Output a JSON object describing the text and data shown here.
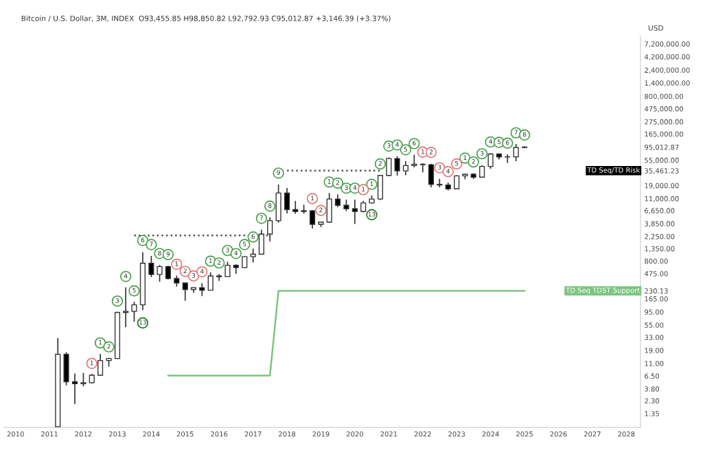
{
  "chart_data": {
    "type": "candlestick",
    "title": "Bitcoin / U.S. Dollar, 3M, INDEX  O93,455.85 H98,850.82 L92,792.93 C95,012.87 +3,146.39 (+3.37%)",
    "ylabel": "USD",
    "x": [
      "2011-04",
      "2011-07",
      "2011-10",
      "2012-01",
      "2012-04",
      "2012-07",
      "2012-10",
      "2013-01",
      "2013-04",
      "2013-07",
      "2013-10",
      "2014-01",
      "2014-04",
      "2014-07",
      "2014-10",
      "2015-01",
      "2015-04",
      "2015-07",
      "2015-10",
      "2016-01",
      "2016-04",
      "2016-07",
      "2016-10",
      "2017-01",
      "2017-04",
      "2017-07",
      "2017-10",
      "2018-01",
      "2018-04",
      "2018-07",
      "2018-10",
      "2019-01",
      "2019-04",
      "2019-07",
      "2019-10",
      "2020-01",
      "2020-04",
      "2020-07",
      "2020-10",
      "2021-01",
      "2021-04",
      "2021-07",
      "2021-10",
      "2022-01",
      "2022-04",
      "2022-07",
      "2022-10",
      "2023-01",
      "2023-04",
      "2023-07",
      "2023-10",
      "2024-01",
      "2024-04",
      "2024-07",
      "2024-10",
      "2025-01"
    ],
    "ohlc": [
      [
        0.78,
        31.9,
        0.78,
        16.1
      ],
      [
        16.1,
        17.5,
        4.4,
        5.1
      ],
      [
        5.1,
        7.2,
        2.0,
        4.7
      ],
      [
        4.7,
        7.4,
        4.2,
        4.9
      ],
      [
        4.9,
        7.1,
        4.7,
        6.7
      ],
      [
        6.7,
        16.4,
        6.6,
        12.4
      ],
      [
        12.4,
        14.0,
        9.6,
        13.5
      ],
      [
        13.5,
        95,
        13.3,
        93
      ],
      [
        93,
        266,
        50,
        97.5
      ],
      [
        97.5,
        145,
        63,
        128
      ],
      [
        128,
        1163,
        102,
        732
      ],
      [
        732,
        1000,
        410,
        457
      ],
      [
        457,
        680,
        337,
        637
      ],
      [
        637,
        660,
        370,
        386
      ],
      [
        386,
        437,
        275,
        320
      ],
      [
        320,
        325,
        152,
        244
      ],
      [
        244,
        268,
        213,
        263
      ],
      [
        263,
        317,
        185,
        236
      ],
      [
        236,
        500,
        236,
        430
      ],
      [
        430,
        465,
        350,
        416
      ],
      [
        416,
        780,
        415,
        673
      ],
      [
        673,
        700,
        470,
        609
      ],
      [
        609,
        980,
        600,
        964
      ],
      [
        964,
        1350,
        755,
        1071
      ],
      [
        1071,
        3000,
        1060,
        2480
      ],
      [
        2480,
        5000,
        1830,
        4360
      ],
      [
        4360,
        19800,
        4000,
        13880
      ],
      [
        13880,
        17200,
        5900,
        6930
      ],
      [
        6930,
        9990,
        5800,
        6390
      ],
      [
        6390,
        8500,
        5860,
        6620
      ],
      [
        6620,
        6800,
        3120,
        3740
      ],
      [
        3740,
        4200,
        3350,
        4100
      ],
      [
        4100,
        13900,
        4030,
        10800
      ],
      [
        10800,
        13200,
        7700,
        8300
      ],
      [
        8300,
        10500,
        6500,
        7200
      ],
      [
        7200,
        10500,
        3800,
        6400
      ],
      [
        6400,
        10000,
        6150,
        9140
      ],
      [
        9140,
        12500,
        8900,
        10780
      ],
      [
        10780,
        29300,
        10400,
        28990
      ],
      [
        28990,
        61800,
        28000,
        58800
      ],
      [
        58800,
        64900,
        28800,
        35040
      ],
      [
        35040,
        52900,
        29300,
        43800
      ],
      [
        43800,
        69000,
        40600,
        46300
      ],
      [
        46300,
        48200,
        32900,
        45500
      ],
      [
        45500,
        47400,
        17600,
        19930
      ],
      [
        19930,
        25200,
        17600,
        19430
      ],
      [
        19430,
        21500,
        15500,
        16540
      ],
      [
        16540,
        29200,
        16500,
        28470
      ],
      [
        28470,
        31400,
        24800,
        30470
      ],
      [
        30470,
        31800,
        24900,
        26970
      ],
      [
        26970,
        44700,
        26600,
        42280
      ],
      [
        42280,
        73800,
        38500,
        71300
      ],
      [
        71300,
        72800,
        56500,
        62700
      ],
      [
        62700,
        70000,
        49000,
        63300
      ],
      [
        63300,
        108300,
        52500,
        93400
      ],
      [
        93455.85,
        98850.82,
        92792.93,
        95012.87
      ]
    ],
    "series": [
      {
        "type": "line",
        "name": "TD Seq TDST Support",
        "color": "#7cc47f",
        "line_style": "solid",
        "x": [
          "2014-07",
          "2017-07",
          "2017-10",
          "2025-01"
        ],
        "values": [
          6.6,
          6.6,
          230.13,
          230.13
        ]
      },
      {
        "type": "line",
        "color": "#555555",
        "line_style": "dotted",
        "x": [
          "2013-07",
          "2017-07"
        ],
        "values": [
          2340,
          2340
        ]
      },
      {
        "type": "line",
        "name": "TD Seq/TD Risk",
        "color": "#555555",
        "line_style": "dotted",
        "x": [
          "2018-01",
          "2020-10"
        ],
        "values": [
          35461.23,
          35461.23
        ]
      },
      {
        "type": "scatter",
        "color": "#43a047",
        "marker": "circle",
        "x": [
          "2012-07",
          "2012-10",
          "2013-01",
          "2013-04",
          "2013-07",
          "2013-10",
          "2014-01",
          "2014-04",
          "2014-07",
          "2015-10",
          "2016-01",
          "2016-04",
          "2016-07",
          "2016-10",
          "2017-01",
          "2017-04",
          "2017-07",
          "2017-10",
          "2019-04",
          "2019-07",
          "2019-10",
          "2020-01",
          "2020-07",
          "2020-10",
          "2021-01",
          "2021-04",
          "2021-07",
          "2021-10",
          "2023-04",
          "2023-07",
          "2023-10",
          "2024-01",
          "2024-04",
          "2024-07",
          "2024-10",
          "2025-01"
        ],
        "values": [
          26,
          22,
          150,
          420,
          230,
          1900,
          1600,
          1100,
          1050,
          800,
          740,
          1250,
          1100,
          1600,
          2200,
          4800,
          8000,
          32000,
          22000,
          21000,
          17000,
          17000,
          20000,
          47000,
          99000,
          104000,
          85000,
          110000,
          60000,
          51000,
          72000,
          118000,
          116000,
          112000,
          173000,
          158000
        ]
      },
      {
        "type": "scatter",
        "color": "#e57373",
        "marker": "circle",
        "x": [
          "2012-04",
          "2014-10",
          "2015-01",
          "2015-04",
          "2015-07",
          "2018-10",
          "2019-01",
          "2020-04",
          "2022-01",
          "2022-04",
          "2022-07",
          "2022-10",
          "2023-01"
        ],
        "values": [
          11,
          700,
          520,
          430,
          510,
          11000,
          6700,
          16000,
          77000,
          76000,
          40000,
          34000,
          47000
        ]
      },
      {
        "type": "scatter",
        "color": "#1b7a1f",
        "marker": "circle",
        "x": [
          "2013-10",
          "2020-07"
        ],
        "values": [
          60,
          5600
        ]
      }
    ],
    "annotations": [
      {
        "text": "1",
        "x": "2012-07",
        "y": 26
      },
      {
        "text": "2",
        "x": "2012-10",
        "y": 22
      },
      {
        "text": "3",
        "x": "2013-01",
        "y": 150
      },
      {
        "text": "4",
        "x": "2013-04",
        "y": 420
      },
      {
        "text": "5",
        "x": "2013-07",
        "y": 230
      },
      {
        "text": "6",
        "x": "2013-10",
        "y": 1900
      },
      {
        "text": "7",
        "x": "2014-01",
        "y": 1600
      },
      {
        "text": "8",
        "x": "2014-04",
        "y": 1100
      },
      {
        "text": "9",
        "x": "2014-07",
        "y": 1050
      },
      {
        "text": "1",
        "x": "2015-10",
        "y": 800
      },
      {
        "text": "2",
        "x": "2016-01",
        "y": 740
      },
      {
        "text": "3",
        "x": "2016-04",
        "y": 1250
      },
      {
        "text": "4",
        "x": "2016-07",
        "y": 1100
      },
      {
        "text": "5",
        "x": "2016-10",
        "y": 1600
      },
      {
        "text": "6",
        "x": "2017-01",
        "y": 2200
      },
      {
        "text": "7",
        "x": "2017-04",
        "y": 4800
      },
      {
        "text": "8",
        "x": "2017-07",
        "y": 8000
      },
      {
        "text": "9",
        "x": "2017-10",
        "y": 32000
      },
      {
        "text": "1",
        "x": "2019-04",
        "y": 22000
      },
      {
        "text": "2",
        "x": "2019-07",
        "y": 21000
      },
      {
        "text": "3",
        "x": "2019-10",
        "y": 17000
      },
      {
        "text": "4",
        "x": "2020-01",
        "y": 17000
      },
      {
        "text": "1",
        "x": "2020-07",
        "y": 20000
      },
      {
        "text": "2",
        "x": "2020-10",
        "y": 47000
      },
      {
        "text": "3",
        "x": "2021-01",
        "y": 99000
      },
      {
        "text": "4",
        "x": "2021-04",
        "y": 104000
      },
      {
        "text": "5",
        "x": "2021-07",
        "y": 85000
      },
      {
        "text": "6",
        "x": "2021-10",
        "y": 110000
      },
      {
        "text": "1",
        "x": "2023-04",
        "y": 60000
      },
      {
        "text": "2",
        "x": "2023-07",
        "y": 51000
      },
      {
        "text": "3",
        "x": "2023-10",
        "y": 72000
      },
      {
        "text": "4",
        "x": "2024-01",
        "y": 118000
      },
      {
        "text": "5",
        "x": "2024-04",
        "y": 116000
      },
      {
        "text": "6",
        "x": "2024-07",
        "y": 112000
      },
      {
        "text": "7",
        "x": "2024-10",
        "y": 173000
      },
      {
        "text": "8",
        "x": "2025-01",
        "y": 158000
      },
      {
        "text": "1",
        "x": "2012-04",
        "y": 11
      },
      {
        "text": "1",
        "x": "2014-10",
        "y": 700
      },
      {
        "text": "2",
        "x": "2015-01",
        "y": 520
      },
      {
        "text": "3",
        "x": "2015-04",
        "y": 430
      },
      {
        "text": "4",
        "x": "2015-07",
        "y": 510
      },
      {
        "text": "1",
        "x": "2018-10",
        "y": 11000
      },
      {
        "text": "2",
        "x": "2019-01",
        "y": 6700
      },
      {
        "text": "1",
        "x": "2020-04",
        "y": 16000
      },
      {
        "text": "1",
        "x": "2022-01",
        "y": 77000
      },
      {
        "text": "2",
        "x": "2022-04",
        "y": 76000
      },
      {
        "text": "3",
        "x": "2022-07",
        "y": 40000
      },
      {
        "text": "4",
        "x": "2022-10",
        "y": 34000
      },
      {
        "text": "5",
        "x": "2023-01",
        "y": 47000
      },
      {
        "text": "13",
        "x": "2013-10",
        "y": 60
      },
      {
        "text": "13",
        "x": "2020-07",
        "y": 5600
      }
    ],
    "log": true,
    "xlim": [
      "2009-09",
      "2028-06"
    ],
    "ylim": [
      0.75,
      10000000
    ],
    "xticks": [
      {
        "value": "2010",
        "label": "2010"
      },
      {
        "value": "2011",
        "label": "2011"
      },
      {
        "value": "2012",
        "label": "2012"
      },
      {
        "value": "2013",
        "label": "2013"
      },
      {
        "value": "2014",
        "label": "2014"
      },
      {
        "value": "2015",
        "label": "2015"
      },
      {
        "value": "2016",
        "label": "2016"
      },
      {
        "value": "2017",
        "label": "2017"
      },
      {
        "value": "2018",
        "label": "2018"
      },
      {
        "value": "2019",
        "label": "2019"
      },
      {
        "value": "2020",
        "label": "2020"
      },
      {
        "value": "2021",
        "label": "2021"
      },
      {
        "value": "2022",
        "label": "2022"
      },
      {
        "value": "2023",
        "label": "2023"
      },
      {
        "value": "2024",
        "label": "2024"
      },
      {
        "value": "2025",
        "label": "2025"
      },
      {
        "value": "2026",
        "label": "2026"
      },
      {
        "value": "2027",
        "label": "2027"
      },
      {
        "value": "2028",
        "label": "2028"
      }
    ],
    "yticks": [
      {
        "value": 1.35,
        "label": "1.35"
      },
      {
        "value": 2.3,
        "label": "2.30"
      },
      {
        "value": 3.8,
        "label": "3.80"
      },
      {
        "value": 6.5,
        "label": "6.50"
      },
      {
        "value": 11,
        "label": "11.00"
      },
      {
        "value": 19,
        "label": "19.00"
      },
      {
        "value": 33,
        "label": "33.00"
      },
      {
        "value": 55,
        "label": "55.00"
      },
      {
        "value": 95,
        "label": "95.00"
      },
      {
        "value": 165,
        "label": "165.00"
      },
      {
        "value": 230.13,
        "label": "230.13"
      },
      {
        "value": 475,
        "label": "475.00"
      },
      {
        "value": 800,
        "label": "800.00"
      },
      {
        "value": 1350,
        "label": "1,350.00"
      },
      {
        "value": 2250,
        "label": "2,250.00"
      },
      {
        "value": 3850,
        "label": "3,850.00"
      },
      {
        "value": 6650,
        "label": "6,650.00"
      },
      {
        "value": 11000,
        "label": "11,000.00"
      },
      {
        "value": 19000,
        "label": "19,000.00"
      },
      {
        "value": 35461.23,
        "label": "35,461.23"
      },
      {
        "value": 55000,
        "label": "55,000.00"
      },
      {
        "value": 95012.87,
        "label": "95,012.87"
      },
      {
        "value": 165000,
        "label": "165,000.00"
      },
      {
        "value": 275000,
        "label": "275,000.00"
      },
      {
        "value": 475000,
        "label": "475,000.00"
      },
      {
        "value": 800000,
        "label": "800,000.00"
      },
      {
        "value": 1400000,
        "label": "1,400,000.00"
      },
      {
        "value": 2400000,
        "label": "2,400,000.00"
      },
      {
        "value": 4200000,
        "label": "4,200,000.00"
      },
      {
        "value": 7200000,
        "label": "7,200,000.00"
      }
    ],
    "grid": false,
    "legend": false
  }
}
